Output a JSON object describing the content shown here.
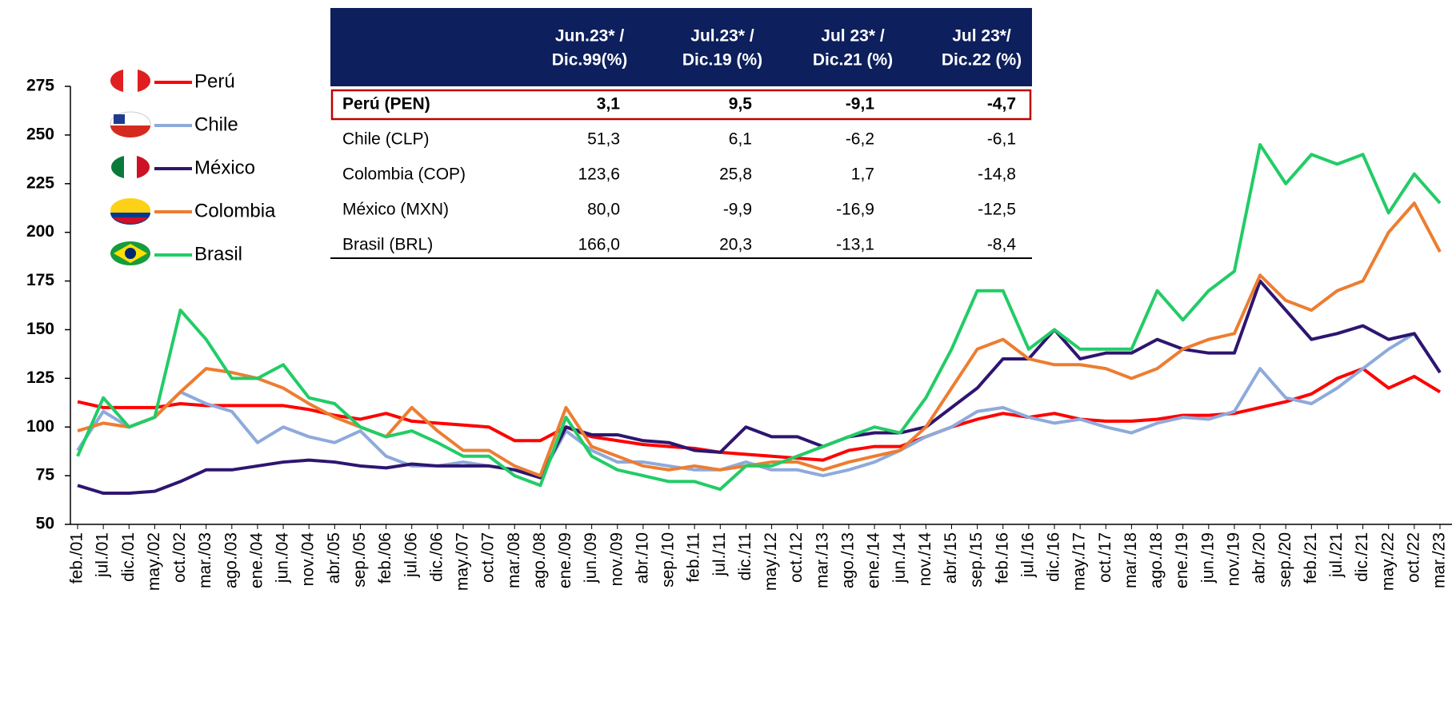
{
  "chart_data": {
    "type": "line",
    "categories": [
      "feb./01",
      "jul./01",
      "dic./01",
      "may./02",
      "oct./02",
      "mar./03",
      "ago./03",
      "ene./04",
      "jun./04",
      "nov./04",
      "abr./05",
      "sep./05",
      "feb./06",
      "jul./06",
      "dic./06",
      "may./07",
      "oct./07",
      "mar./08",
      "ago./08",
      "ene./09",
      "jun./09",
      "nov./09",
      "abr./10",
      "sep./10",
      "feb./11",
      "jul./11",
      "dic./11",
      "may./12",
      "oct./12",
      "mar./13",
      "ago./13",
      "ene./14",
      "jun./14",
      "nov./14",
      "abr./15",
      "sep./15",
      "feb./16",
      "jul./16",
      "dic./16",
      "may./17",
      "oct./17",
      "mar./18",
      "ago./18",
      "ene./19",
      "jun./19",
      "nov./19",
      "abr./20",
      "sep./20",
      "feb./21",
      "jul./21",
      "dic./21",
      "may./22",
      "oct./22",
      "mar./23"
    ],
    "series": [
      {
        "name": "Perú",
        "color": "#ff0000",
        "values": [
          113,
          110,
          110,
          110,
          112,
          111,
          111,
          111,
          111,
          109,
          106,
          104,
          107,
          103,
          102,
          101,
          100,
          93,
          93,
          100,
          95,
          93,
          91,
          90,
          89,
          87,
          86,
          85,
          84,
          83,
          88,
          90,
          90,
          95,
          100,
          104,
          107,
          105,
          107,
          104,
          103,
          103,
          104,
          106,
          106,
          107,
          110,
          113,
          117,
          125,
          130,
          120,
          126,
          118
        ]
      },
      {
        "name": "Chile",
        "color": "#8eaadb",
        "values": [
          88,
          108,
          100,
          105,
          118,
          112,
          108,
          92,
          100,
          95,
          92,
          98,
          85,
          80,
          80,
          82,
          80,
          78,
          74,
          98,
          88,
          82,
          82,
          80,
          78,
          78,
          82,
          78,
          78,
          75,
          78,
          82,
          88,
          95,
          100,
          108,
          110,
          105,
          102,
          104,
          100,
          97,
          102,
          105,
          104,
          108,
          130,
          115,
          112,
          120,
          130,
          140,
          148,
          128
        ]
      },
      {
        "name": "México",
        "color": "#2e1570",
        "values": [
          70,
          66,
          66,
          67,
          72,
          78,
          78,
          80,
          82,
          83,
          82,
          80,
          79,
          81,
          80,
          80,
          80,
          78,
          74,
          100,
          96,
          96,
          93,
          92,
          88,
          87,
          100,
          95,
          95,
          90,
          95,
          97,
          97,
          100,
          110,
          120,
          135,
          135,
          150,
          135,
          138,
          138,
          145,
          140,
          138,
          138,
          175,
          160,
          145,
          148,
          152,
          145,
          148,
          128
        ]
      },
      {
        "name": "Colombia",
        "color": "#ed7d31",
        "values": [
          98,
          102,
          100,
          105,
          118,
          130,
          128,
          125,
          120,
          112,
          105,
          100,
          95,
          110,
          98,
          88,
          88,
          80,
          75,
          110,
          90,
          85,
          80,
          78,
          80,
          78,
          80,
          82,
          82,
          78,
          82,
          85,
          88,
          100,
          120,
          140,
          145,
          135,
          132,
          132,
          130,
          125,
          130,
          140,
          145,
          148,
          178,
          165,
          160,
          170,
          175,
          200,
          215,
          190
        ]
      },
      {
        "name": "Brasil",
        "color": "#22cc66",
        "values": [
          85,
          115,
          100,
          105,
          160,
          145,
          125,
          125,
          132,
          115,
          112,
          100,
          95,
          98,
          92,
          85,
          85,
          75,
          70,
          105,
          85,
          78,
          75,
          72,
          72,
          68,
          80,
          80,
          85,
          90,
          95,
          100,
          97,
          115,
          140,
          170,
          170,
          140,
          150,
          140,
          140,
          140,
          170,
          155,
          170,
          180,
          245,
          225,
          240,
          235,
          240,
          210,
          230,
          215
        ]
      }
    ],
    "ylim": [
      50,
      275
    ],
    "yticks": [
      50,
      75,
      100,
      125,
      150,
      175,
      200,
      225,
      250,
      275
    ],
    "grid": false
  },
  "table": {
    "columns": [
      [
        "Jun.23* /",
        "Dic.99(%)"
      ],
      [
        "Jul.23* /",
        "Dic.19 (%)"
      ],
      [
        "Jul 23* /",
        "Dic.21 (%)"
      ],
      [
        "Jul 23*/",
        "Dic.22 (%)"
      ]
    ],
    "rows": [
      [
        "Perú (PEN)",
        "3,1",
        "9,5",
        "-9,1",
        "-4,7"
      ],
      [
        "Chile (CLP)",
        "51,3",
        "6,1",
        "-6,2",
        "-6,1"
      ],
      [
        "Colombia (COP)",
        "123,6",
        "25,8",
        "1,7",
        "-14,8"
      ],
      [
        "México (MXN)",
        "80,0",
        "-9,9",
        "-16,9",
        "-12,5"
      ],
      [
        "Brasil (BRL)",
        "166,0",
        "20,3",
        "-13,1",
        "-8,4"
      ]
    ]
  }
}
